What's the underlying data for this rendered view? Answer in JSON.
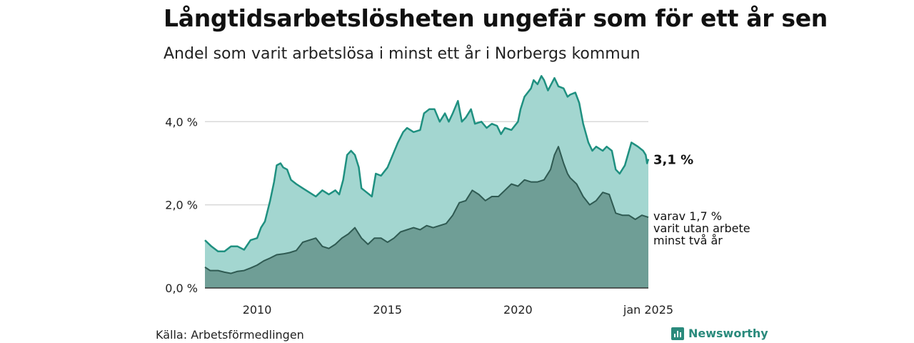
{
  "title": "Långtidsarbetslösheten ungefär som för ett år sen",
  "subtitle": "Andel som varit arbetslösa i minst ett år i Norbergs kommun",
  "source": "Källa: Arbetsförmedlingen",
  "brand": "Newsworthy",
  "colors": {
    "series1_line": "#1f9080",
    "series1_fill": "#a3d6d0",
    "series2_line": "#2f5a52",
    "series2_fill": "#6f9e96",
    "grid": "#d9d9d9"
  },
  "chart_data": {
    "type": "area",
    "title": "Långtidsarbetslösheten ungefär som för ett år sen",
    "subtitle": "Andel som varit arbetslösa i minst ett år i Norbergs kommun",
    "x_range": [
      2008.0,
      2025.0
    ],
    "ylim": [
      0,
      5.5
    ],
    "y_ticks": [
      {
        "value": 0,
        "label": "0,0 %"
      },
      {
        "value": 2,
        "label": "2,0 %"
      },
      {
        "value": 4,
        "label": "4,0 %"
      }
    ],
    "x_ticks": [
      {
        "value": 2010,
        "label": "2010"
      },
      {
        "value": 2015,
        "label": "2015"
      },
      {
        "value": 2020,
        "label": "2020"
      },
      {
        "value": 2025,
        "label": "jan 2025"
      }
    ],
    "grid": true,
    "series": [
      {
        "end_label": "3,1 %",
        "points": [
          [
            2008.0,
            1.15
          ],
          [
            2008.25,
            1.0
          ],
          [
            2008.5,
            0.88
          ],
          [
            2008.75,
            0.88
          ],
          [
            2009.0,
            1.0
          ],
          [
            2009.25,
            1.0
          ],
          [
            2009.5,
            0.92
          ],
          [
            2009.75,
            1.15
          ],
          [
            2010.0,
            1.2
          ],
          [
            2010.15,
            1.45
          ],
          [
            2010.3,
            1.6
          ],
          [
            2010.5,
            2.1
          ],
          [
            2010.65,
            2.55
          ],
          [
            2010.75,
            2.95
          ],
          [
            2010.9,
            3.0
          ],
          [
            2011.0,
            2.9
          ],
          [
            2011.15,
            2.85
          ],
          [
            2011.3,
            2.6
          ],
          [
            2011.5,
            2.5
          ],
          [
            2011.75,
            2.4
          ],
          [
            2012.0,
            2.3
          ],
          [
            2012.25,
            2.2
          ],
          [
            2012.5,
            2.35
          ],
          [
            2012.75,
            2.25
          ],
          [
            2013.0,
            2.35
          ],
          [
            2013.15,
            2.25
          ],
          [
            2013.3,
            2.6
          ],
          [
            2013.45,
            3.2
          ],
          [
            2013.6,
            3.3
          ],
          [
            2013.75,
            3.2
          ],
          [
            2013.9,
            2.9
          ],
          [
            2014.0,
            2.4
          ],
          [
            2014.2,
            2.3
          ],
          [
            2014.4,
            2.2
          ],
          [
            2014.55,
            2.75
          ],
          [
            2014.75,
            2.7
          ],
          [
            2015.0,
            2.9
          ],
          [
            2015.2,
            3.2
          ],
          [
            2015.4,
            3.5
          ],
          [
            2015.6,
            3.75
          ],
          [
            2015.75,
            3.85
          ],
          [
            2016.0,
            3.75
          ],
          [
            2016.25,
            3.8
          ],
          [
            2016.4,
            4.2
          ],
          [
            2016.6,
            4.3
          ],
          [
            2016.8,
            4.3
          ],
          [
            2017.0,
            4.0
          ],
          [
            2017.2,
            4.2
          ],
          [
            2017.35,
            4.0
          ],
          [
            2017.5,
            4.2
          ],
          [
            2017.7,
            4.5
          ],
          [
            2017.85,
            4.0
          ],
          [
            2018.0,
            4.1
          ],
          [
            2018.2,
            4.3
          ],
          [
            2018.35,
            3.95
          ],
          [
            2018.6,
            4.0
          ],
          [
            2018.8,
            3.85
          ],
          [
            2019.0,
            3.95
          ],
          [
            2019.2,
            3.9
          ],
          [
            2019.35,
            3.7
          ],
          [
            2019.5,
            3.85
          ],
          [
            2019.75,
            3.8
          ],
          [
            2020.0,
            4.0
          ],
          [
            2020.1,
            4.3
          ],
          [
            2020.25,
            4.6
          ],
          [
            2020.5,
            4.8
          ],
          [
            2020.6,
            5.0
          ],
          [
            2020.75,
            4.9
          ],
          [
            2020.9,
            5.1
          ],
          [
            2021.0,
            5.0
          ],
          [
            2021.15,
            4.75
          ],
          [
            2021.4,
            5.05
          ],
          [
            2021.55,
            4.85
          ],
          [
            2021.75,
            4.8
          ],
          [
            2021.9,
            4.6
          ],
          [
            2022.0,
            4.65
          ],
          [
            2022.2,
            4.7
          ],
          [
            2022.35,
            4.45
          ],
          [
            2022.5,
            3.95
          ],
          [
            2022.7,
            3.5
          ],
          [
            2022.85,
            3.3
          ],
          [
            2023.0,
            3.4
          ],
          [
            2023.25,
            3.3
          ],
          [
            2023.4,
            3.4
          ],
          [
            2023.6,
            3.3
          ],
          [
            2023.75,
            2.85
          ],
          [
            2023.9,
            2.75
          ],
          [
            2024.1,
            2.95
          ],
          [
            2024.35,
            3.5
          ],
          [
            2024.6,
            3.4
          ],
          [
            2024.8,
            3.3
          ],
          [
            2024.9,
            3.2
          ],
          [
            2024.95,
            3.0
          ],
          [
            2025.0,
            3.1
          ]
        ]
      },
      {
        "end_label": [
          "varav 1,7 %",
          "varit utan arbete",
          "minst två år"
        ],
        "points": [
          [
            2008.0,
            0.5
          ],
          [
            2008.2,
            0.42
          ],
          [
            2008.5,
            0.42
          ],
          [
            2008.75,
            0.38
          ],
          [
            2009.0,
            0.35
          ],
          [
            2009.25,
            0.4
          ],
          [
            2009.5,
            0.42
          ],
          [
            2009.75,
            0.48
          ],
          [
            2010.0,
            0.55
          ],
          [
            2010.25,
            0.65
          ],
          [
            2010.5,
            0.72
          ],
          [
            2010.75,
            0.8
          ],
          [
            2011.0,
            0.82
          ],
          [
            2011.25,
            0.85
          ],
          [
            2011.5,
            0.9
          ],
          [
            2011.75,
            1.1
          ],
          [
            2012.0,
            1.15
          ],
          [
            2012.25,
            1.2
          ],
          [
            2012.5,
            1.0
          ],
          [
            2012.75,
            0.95
          ],
          [
            2013.0,
            1.05
          ],
          [
            2013.25,
            1.2
          ],
          [
            2013.5,
            1.3
          ],
          [
            2013.75,
            1.45
          ],
          [
            2014.0,
            1.2
          ],
          [
            2014.25,
            1.05
          ],
          [
            2014.5,
            1.2
          ],
          [
            2014.75,
            1.2
          ],
          [
            2015.0,
            1.1
          ],
          [
            2015.25,
            1.2
          ],
          [
            2015.5,
            1.35
          ],
          [
            2015.75,
            1.4
          ],
          [
            2016.0,
            1.45
          ],
          [
            2016.25,
            1.4
          ],
          [
            2016.5,
            1.5
          ],
          [
            2016.75,
            1.45
          ],
          [
            2017.0,
            1.5
          ],
          [
            2017.25,
            1.55
          ],
          [
            2017.5,
            1.75
          ],
          [
            2017.75,
            2.05
          ],
          [
            2018.0,
            2.1
          ],
          [
            2018.25,
            2.35
          ],
          [
            2018.5,
            2.25
          ],
          [
            2018.75,
            2.1
          ],
          [
            2019.0,
            2.2
          ],
          [
            2019.25,
            2.2
          ],
          [
            2019.5,
            2.35
          ],
          [
            2019.75,
            2.5
          ],
          [
            2020.0,
            2.45
          ],
          [
            2020.25,
            2.6
          ],
          [
            2020.5,
            2.55
          ],
          [
            2020.75,
            2.55
          ],
          [
            2021.0,
            2.6
          ],
          [
            2021.25,
            2.85
          ],
          [
            2021.4,
            3.2
          ],
          [
            2021.55,
            3.4
          ],
          [
            2021.75,
            3.0
          ],
          [
            2021.9,
            2.75
          ],
          [
            2022.0,
            2.65
          ],
          [
            2022.25,
            2.5
          ],
          [
            2022.5,
            2.2
          ],
          [
            2022.75,
            2.0
          ],
          [
            2023.0,
            2.1
          ],
          [
            2023.25,
            2.3
          ],
          [
            2023.5,
            2.25
          ],
          [
            2023.75,
            1.8
          ],
          [
            2024.0,
            1.75
          ],
          [
            2024.25,
            1.75
          ],
          [
            2024.5,
            1.65
          ],
          [
            2024.75,
            1.75
          ],
          [
            2025.0,
            1.7
          ]
        ]
      }
    ]
  }
}
